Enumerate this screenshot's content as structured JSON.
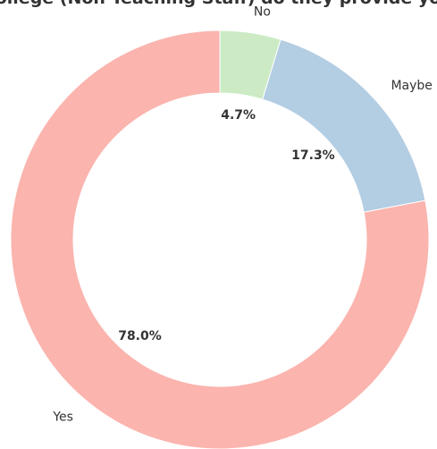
{
  "chart_data": {
    "type": "pie",
    "title": "...ollege (Non Teaching Staff) do they provide yo...",
    "donut": true,
    "start_angle_deg": 90,
    "direction": "clockwise",
    "slices": [
      {
        "label": "No",
        "value": 4.7,
        "pct_label": "4.7%",
        "color": "#ccebc5"
      },
      {
        "label": "Maybe",
        "value": 17.3,
        "pct_label": "17.3%",
        "color": "#b3cde3"
      },
      {
        "label": "Yes",
        "value": 78.0,
        "pct_label": "78.0%",
        "color": "#fbb4ae"
      }
    ]
  }
}
